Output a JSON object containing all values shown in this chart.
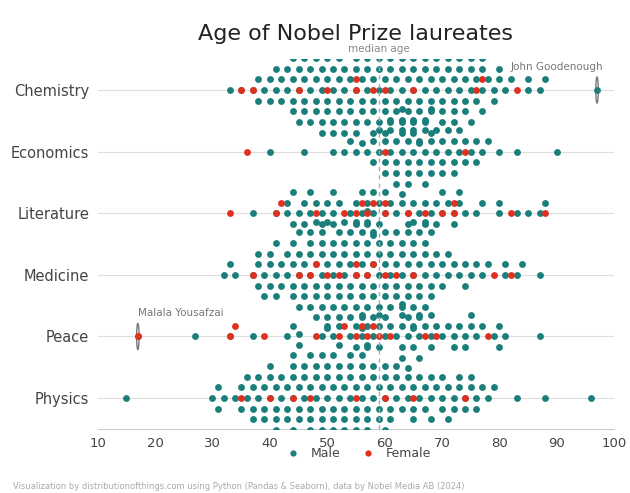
{
  "title": "Age of Nobel Prize laureates",
  "categories": [
    "Chemistry",
    "Economics",
    "Literature",
    "Medicine",
    "Peace",
    "Physics"
  ],
  "male_color": "#1a7f7a",
  "female_color": "#e03020",
  "background_color": "#ffffff",
  "median_age": 59,
  "median_line_color": "#999999",
  "xlim": [
    10,
    100
  ],
  "xticks": [
    10,
    20,
    30,
    40,
    50,
    60,
    70,
    80,
    90,
    100
  ],
  "footer_text": "Visualization by distributionofthings.com using Python (Pandas & Seaborn), data by Nobel Media AB (2024)",
  "chemistry_male": [
    33,
    35,
    37,
    38,
    38,
    39,
    40,
    40,
    41,
    41,
    42,
    42,
    43,
    43,
    44,
    44,
    44,
    44,
    45,
    45,
    45,
    46,
    46,
    46,
    46,
    47,
    47,
    47,
    47,
    48,
    48,
    48,
    48,
    49,
    49,
    49,
    49,
    49,
    50,
    50,
    50,
    50,
    51,
    51,
    51,
    51,
    51,
    52,
    52,
    52,
    52,
    53,
    53,
    53,
    53,
    53,
    54,
    54,
    54,
    55,
    55,
    55,
    55,
    55,
    55,
    56,
    56,
    56,
    56,
    56,
    57,
    57,
    57,
    57,
    57,
    58,
    58,
    58,
    58,
    58,
    59,
    59,
    59,
    59,
    59,
    60,
    60,
    60,
    60,
    61,
    61,
    61,
    61,
    62,
    62,
    62,
    62,
    63,
    63,
    63,
    63,
    63,
    64,
    64,
    64,
    65,
    65,
    65,
    65,
    65,
    65,
    66,
    66,
    66,
    66,
    66,
    67,
    67,
    67,
    67,
    67,
    68,
    68,
    68,
    68,
    69,
    69,
    69,
    70,
    70,
    70,
    70,
    71,
    71,
    71,
    72,
    72,
    72,
    72,
    73,
    73,
    73,
    73,
    74,
    74,
    74,
    75,
    75,
    75,
    75,
    75,
    76,
    76,
    77,
    77,
    77,
    77,
    78,
    79,
    79,
    80,
    80,
    81,
    82,
    85,
    85,
    87,
    88
  ],
  "chemistry_female": [
    35,
    37,
    45,
    50,
    55,
    55,
    58,
    60,
    65,
    76,
    77,
    83
  ],
  "economics_male": [
    40,
    46,
    51,
    53,
    54,
    55,
    57,
    58,
    58,
    59,
    59,
    60,
    60,
    60,
    61,
    61,
    61,
    62,
    62,
    62,
    62,
    63,
    63,
    63,
    63,
    63,
    64,
    64,
    64,
    64,
    65,
    65,
    65,
    66,
    66,
    66,
    67,
    67,
    67,
    67,
    68,
    68,
    68,
    68,
    69,
    69,
    70,
    70,
    70,
    71,
    71,
    72,
    72,
    72,
    73,
    73,
    74,
    74,
    75,
    76,
    76,
    77,
    78,
    80,
    83,
    90
  ],
  "economics_female": [
    36,
    60,
    74
  ],
  "literature_male": [
    37,
    41,
    43,
    43,
    44,
    44,
    45,
    46,
    46,
    47,
    47,
    48,
    49,
    49,
    50,
    51,
    51,
    51,
    52,
    54,
    55,
    55,
    56,
    56,
    57,
    57,
    58,
    58,
    58,
    59,
    59,
    60,
    60,
    61,
    62,
    63,
    64,
    64,
    65,
    66,
    67,
    67,
    68,
    69,
    69,
    70,
    70,
    71,
    72,
    72,
    73,
    73,
    74,
    76,
    77,
    80,
    80,
    83,
    85,
    87,
    88
  ],
  "literature_female": [
    33,
    41,
    42,
    48,
    53,
    55,
    56,
    57,
    58,
    60,
    60,
    64,
    67,
    70,
    72,
    72,
    82,
    88
  ],
  "medicine_male": [
    32,
    33,
    34,
    37,
    38,
    38,
    38,
    39,
    39,
    40,
    40,
    40,
    41,
    41,
    41,
    42,
    42,
    43,
    43,
    44,
    44,
    44,
    44,
    45,
    45,
    45,
    45,
    46,
    46,
    46,
    47,
    47,
    47,
    47,
    47,
    48,
    48,
    48,
    48,
    48,
    49,
    49,
    49,
    49,
    49,
    50,
    50,
    50,
    50,
    50,
    50,
    51,
    51,
    51,
    51,
    52,
    52,
    52,
    52,
    52,
    53,
    53,
    53,
    53,
    53,
    54,
    54,
    54,
    54,
    54,
    55,
    55,
    55,
    55,
    55,
    56,
    56,
    56,
    56,
    56,
    56,
    57,
    57,
    57,
    57,
    57,
    57,
    58,
    58,
    58,
    58,
    58,
    59,
    59,
    59,
    59,
    60,
    60,
    60,
    60,
    60,
    61,
    61,
    61,
    61,
    62,
    62,
    62,
    62,
    63,
    63,
    63,
    63,
    64,
    64,
    64,
    64,
    64,
    65,
    65,
    65,
    65,
    65,
    65,
    66,
    66,
    66,
    66,
    66,
    67,
    67,
    67,
    67,
    67,
    68,
    68,
    68,
    68,
    69,
    69,
    70,
    70,
    71,
    71,
    72,
    73,
    74,
    74,
    75,
    76,
    77,
    78,
    81,
    81,
    83,
    84,
    87
  ],
  "medicine_female": [
    37,
    45,
    47,
    48,
    50,
    52,
    55,
    55,
    57,
    58,
    60,
    62,
    65,
    79,
    82
  ],
  "peace_male": [
    27,
    33,
    37,
    43,
    44,
    49,
    50,
    51,
    52,
    54,
    55,
    55,
    56,
    56,
    57,
    57,
    58,
    59,
    59,
    59,
    60,
    61,
    62,
    63,
    63,
    63,
    63,
    63,
    64,
    64,
    65,
    65,
    66,
    66,
    66,
    67,
    68,
    68,
    68,
    69,
    70,
    71,
    72,
    72,
    73,
    74,
    74,
    75,
    75,
    76,
    77,
    79,
    80,
    80,
    81,
    87
  ],
  "peace_female": [
    17,
    33,
    34,
    39,
    48,
    52,
    53,
    55,
    56,
    57,
    58,
    59,
    61,
    67,
    69,
    78
  ],
  "physics_male": [
    15,
    30,
    31,
    31,
    32,
    34,
    35,
    35,
    36,
    36,
    37,
    37,
    37,
    38,
    38,
    39,
    39,
    39,
    40,
    40,
    40,
    41,
    41,
    41,
    41,
    42,
    42,
    43,
    43,
    43,
    44,
    44,
    44,
    44,
    44,
    44,
    45,
    45,
    45,
    45,
    45,
    45,
    46,
    46,
    46,
    47,
    47,
    47,
    47,
    47,
    48,
    48,
    48,
    49,
    49,
    49,
    49,
    49,
    50,
    50,
    50,
    51,
    51,
    51,
    51,
    51,
    52,
    52,
    52,
    52,
    52,
    53,
    53,
    53,
    53,
    54,
    54,
    54,
    54,
    55,
    55,
    55,
    55,
    55,
    56,
    56,
    56,
    56,
    57,
    57,
    57,
    57,
    57,
    57,
    58,
    58,
    58,
    59,
    59,
    59,
    60,
    60,
    60,
    60,
    61,
    61,
    61,
    62,
    62,
    62,
    63,
    63,
    64,
    64,
    65,
    65,
    65,
    66,
    66,
    67,
    67,
    68,
    68,
    68,
    69,
    70,
    70,
    70,
    71,
    71,
    72,
    72,
    73,
    73,
    74,
    74,
    75,
    75,
    76,
    76,
    77,
    78,
    79,
    83,
    88,
    96
  ],
  "physics_female": [
    35,
    40,
    44,
    47,
    55,
    60,
    65,
    74
  ]
}
